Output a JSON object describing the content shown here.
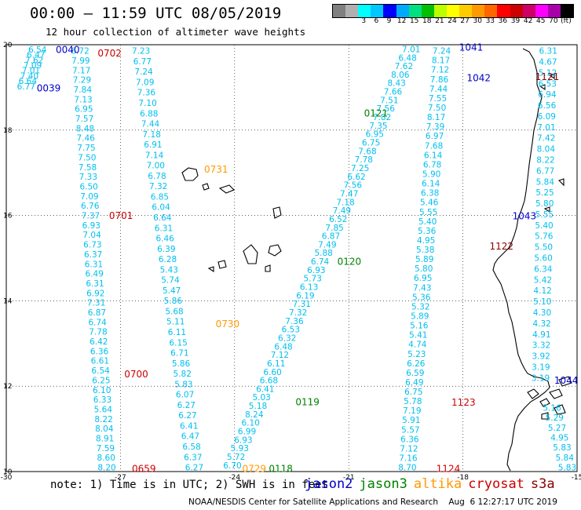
{
  "title": "00:00 – 11:59 UTC 08/05/2019",
  "subtitle": "12 hour collection of altimeter wave heights",
  "colorbar": {
    "colors": [
      "#808080",
      "#b0b0b0",
      "#00ffff",
      "#00c8ff",
      "#0000ff",
      "#00aaff",
      "#00e080",
      "#00c000",
      "#bbff00",
      "#ffff00",
      "#ffcc00",
      "#ff9900",
      "#ff6600",
      "#ff0000",
      "#cc0000",
      "#cc0066",
      "#ff00ff",
      "#aa00aa",
      "#000000"
    ],
    "ticks": [
      "3",
      "6",
      "9",
      "12",
      "15",
      "18",
      "21",
      "24",
      "27",
      "30",
      "33",
      "36",
      "39",
      "42",
      "45",
      "70",
      "(ft)"
    ]
  },
  "axes": {
    "lon_ticks": [
      "-30",
      "-27",
      "-24",
      "-21",
      "-18",
      "-15"
    ],
    "lat_ticks": [
      "20",
      "18",
      "16",
      "14",
      "12",
      "10"
    ]
  },
  "note": "note: 1) Time is in UTC; 2) SWH is in feet",
  "legend": [
    {
      "name": "jason2",
      "color": "#0000cc"
    },
    {
      "name": "jason3",
      "color": "#008000"
    },
    {
      "name": "altika",
      "color": "#ff9900"
    },
    {
      "name": "cryosat",
      "color": "#cc0000"
    },
    {
      "name": "s3a",
      "color": "#8b0000"
    }
  ],
  "credit": "NOAA/NESDIS Center for Satellite Applications and Research    Aug  6 12:27:17 UTC 2019",
  "passes": [
    {
      "time": "0702",
      "mission": "cryosat",
      "lon": -27.6,
      "lat": 19.8
    },
    {
      "time": "0701",
      "mission": "cryosat",
      "lon": -27.3,
      "lat": 15.99
    },
    {
      "time": "0700",
      "mission": "cryosat",
      "lon": -26.9,
      "lat": 12.28
    },
    {
      "time": "0659",
      "mission": "cryosat",
      "lon": -26.7,
      "lat": 10.06
    },
    {
      "time": "0040",
      "mission": "jason2",
      "lon": -28.7,
      "lat": 19.88
    },
    {
      "time": "0039",
      "mission": "jason2",
      "lon": -29.2,
      "lat": 18.98
    },
    {
      "time": "0731",
      "mission": "altika",
      "lon": -24.8,
      "lat": 17.08
    },
    {
      "time": "0730",
      "mission": "altika",
      "lon": -24.5,
      "lat": 13.46
    },
    {
      "time": "0729",
      "mission": "altika",
      "lon": -23.8,
      "lat": 10.06
    },
    {
      "time": "0121",
      "mission": "jason3",
      "lon": -20.6,
      "lat": 18.39
    },
    {
      "time": "0120",
      "mission": "jason3",
      "lon": -21.3,
      "lat": 14.92
    },
    {
      "time": "0119",
      "mission": "jason3",
      "lon": -22.4,
      "lat": 11.63
    },
    {
      "time": "0118",
      "mission": "jason3",
      "lon": -23.1,
      "lat": 10.06
    },
    {
      "time": "1041",
      "mission": "jason2",
      "lon": -18.1,
      "lat": 19.94
    },
    {
      "time": "1042",
      "mission": "jason2",
      "lon": -17.9,
      "lat": 19.22
    },
    {
      "time": "1043",
      "mission": "jason2",
      "lon": -16.7,
      "lat": 15.98
    },
    {
      "time": "1044",
      "mission": "jason2",
      "lon": -15.6,
      "lat": 12.13
    },
    {
      "time": "1121",
      "mission": "s3a",
      "lon": -16.1,
      "lat": 19.25
    },
    {
      "time": "1122",
      "mission": "s3a",
      "lon": -17.3,
      "lat": 15.28
    },
    {
      "time": "1123",
      "mission": "cryosat",
      "lon": -18.3,
      "lat": 11.62
    },
    {
      "time": "1124",
      "mission": "cryosat",
      "lon": -18.7,
      "lat": 10.06
    }
  ],
  "tracks": [
    {
      "name": "track-0039-0040",
      "mission": "jason2",
      "lat_start": 19.89,
      "lat_end": 19.03,
      "lon_start": -29.42,
      "lon_end": -29.72,
      "values": [
        "6.54",
        "6.47",
        "7.62",
        "7.09",
        "7.01",
        "7.40",
        "6.64",
        "6.77"
      ]
    },
    {
      "name": "track-0659-0702",
      "mission": "cryosat",
      "lat_start": 19.86,
      "lat_end": 10.1,
      "lon_start": -28.3,
      "lon_end": -27.6,
      "values": [
        "6.72",
        "7.99",
        "7.17",
        "7.29",
        "7.84",
        "7.13",
        "6.95",
        "7.57",
        "8.48",
        "7.46",
        "7.75",
        "7.50",
        "7.58",
        "7.33",
        "6.50",
        "7.09",
        "6.76",
        "7.37",
        "6.93",
        "7.04",
        "6.73",
        "6.37",
        "6.31",
        "6.49",
        "6.31",
        "6.92",
        "7.31",
        "6.87",
        "6.74",
        "7.78",
        "6.42",
        "6.36",
        "6.61",
        "6.54",
        "6.25",
        "6.10",
        "6.33",
        "5.64",
        "8.22",
        "8.04",
        "8.91",
        "7.59",
        "8.60",
        "8.20"
      ]
    },
    {
      "name": "track-0729-0731",
      "mission": "altika",
      "lat_start": 19.86,
      "lat_end": 10.1,
      "lon_start": -26.7,
      "lon_end": -25.3,
      "values": [
        "7.23",
        "6.77",
        "7.24",
        "7.09",
        "7.36",
        "7.10",
        "6.88",
        "7.44",
        "7.18",
        "6.91",
        "7.14",
        "7.00",
        "6.78",
        "7.32",
        "6.85",
        "6.04",
        "6.64",
        "6.31",
        "6.46",
        "6.39",
        "6.28",
        "5.43",
        "5.74",
        "5.47",
        "5.86",
        "5.68",
        "5.11",
        "6.11",
        "6.15",
        "6.71",
        "5.86",
        "5.82",
        "5.83",
        "6.07",
        "6.27",
        "6.27",
        "6.41",
        "6.47",
        "6.58",
        "6.37",
        "6.27"
      ]
    },
    {
      "name": "track-0118-0121",
      "mission": "jason3",
      "lat_start": 19.9,
      "lat_end": 10.15,
      "lon_start": -19.6,
      "lon_end": -24.3,
      "values": [
        "7.01",
        "6.48",
        "7.62",
        "8.06",
        "8.43",
        "7.66",
        "7.51",
        "7.56",
        "7.82",
        "7.35",
        "6.95",
        "6.75",
        "7.68",
        "7.78",
        "7.25",
        "6.62",
        "7.56",
        "7.47",
        "7.18",
        "7.49",
        "6.52",
        "7.85",
        "6.87",
        "7.49",
        "5.88",
        "6.74",
        "6.93",
        "5.73",
        "6.13",
        "6.19",
        "7.31",
        "7.32",
        "7.36",
        "6.53",
        "6.32",
        "6.48",
        "7.12",
        "6.11",
        "6.60",
        "6.68",
        "6.41",
        "5.03",
        "5.18",
        "8.24",
        "6.10",
        "6.99",
        "6.93",
        "5.93",
        "5.72",
        "6.70"
      ]
    },
    {
      "name": "track-1124-1041",
      "mission": "cryosat",
      "lat_start": 19.86,
      "lat_end": 10.1,
      "lon_start": -18.8,
      "lon_end": -19.7,
      "values": [
        "7.24",
        "8.17",
        "7.12",
        "7.86",
        "7.44",
        "7.55",
        "7.50",
        "8.17",
        "7.39",
        "6.97",
        "7.68",
        "6.14",
        "6.78",
        "5.90",
        "6.14",
        "6.38",
        "5.46",
        "5.55",
        "5.40",
        "5.36",
        "4.95",
        "5.38",
        "5.89",
        "5.80",
        "6.95",
        "7.43",
        "5.36",
        "5.32",
        "5.89",
        "5.16",
        "5.41",
        "4.74",
        "5.23",
        "6.26",
        "6.59",
        "6.49",
        "6.75",
        "5.78",
        "7.19",
        "5.91",
        "5.57",
        "6.36",
        "7.12",
        "7.16",
        "8.70"
      ]
    },
    {
      "name": "track-s3a-1121",
      "mission": "s3a",
      "lat_start": 19.86,
      "lat_end": 12.2,
      "lon_start": -16.0,
      "lon_end": -16.2,
      "values": [
        "6.31",
        "4.67",
        "5.12",
        "6.53",
        "6.94",
        "6.56",
        "6.09",
        "7.01",
        "7.42",
        "8.04",
        "8.22",
        "6.77",
        "5.84",
        "5.25",
        "5.80",
        "5.55",
        "5.40",
        "5.76",
        "5.50",
        "5.60",
        "6.34",
        "5.42",
        "4.12",
        "5.10",
        "4.30",
        "4.32",
        "4.91",
        "3.32",
        "3.92",
        "3.19",
        "3.19"
      ]
    },
    {
      "name": "track-1044-south",
      "mission": "jason2",
      "lat_start": 11.5,
      "lat_end": 10.1,
      "lon_start": -15.9,
      "lon_end": -15.5,
      "values": [
        "5.16",
        "5.29",
        "5.27",
        "4.95",
        "5.83",
        "5.84",
        "5.83"
      ]
    }
  ]
}
